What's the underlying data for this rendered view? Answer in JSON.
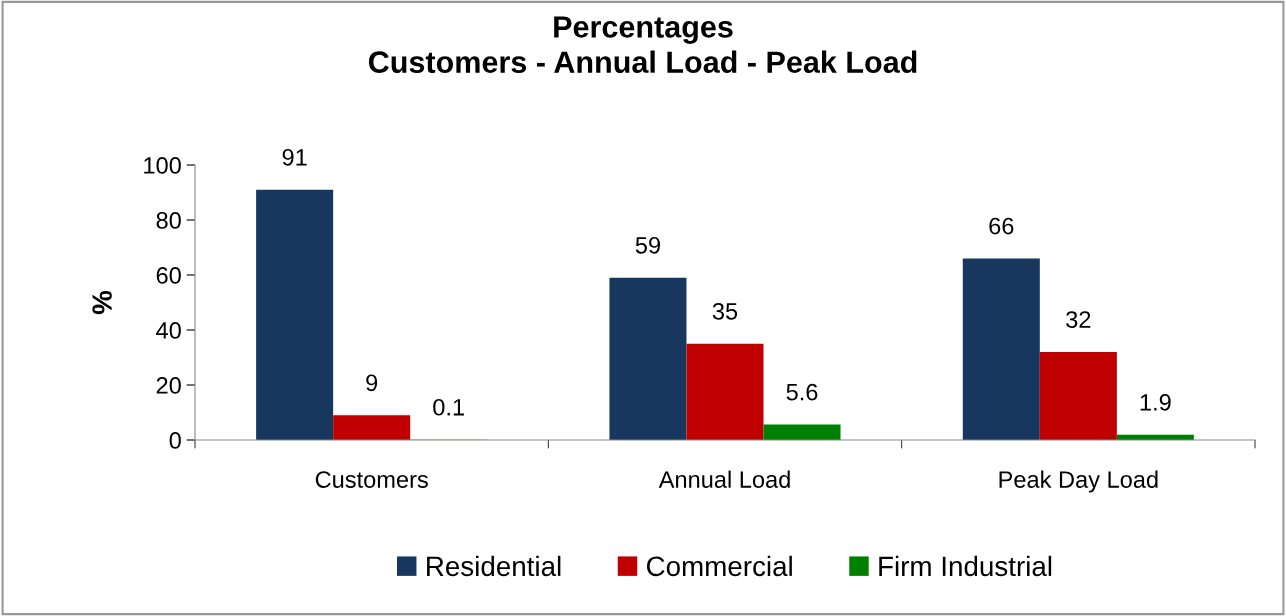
{
  "chart_data": {
    "type": "bar",
    "title": "Percentages\nCustomers - Annual Load - Peak Load",
    "ylabel": "%",
    "categories": [
      "Customers",
      "Annual Load",
      "Peak Day Load"
    ],
    "series": [
      {
        "name": "Residential",
        "color": "#17375e",
        "values": [
          91,
          59,
          66
        ]
      },
      {
        "name": "Commercial",
        "color": "#c00000",
        "values": [
          9,
          35,
          32
        ]
      },
      {
        "name": "Firm Industrial",
        "color": "#008000",
        "values": [
          0.1,
          5.6,
          1.9
        ]
      }
    ],
    "ylim": [
      0,
      100
    ],
    "yticks": [
      0,
      20,
      40,
      60,
      80,
      100
    ],
    "grid": false,
    "legend": "bottom",
    "data_labels": true
  }
}
